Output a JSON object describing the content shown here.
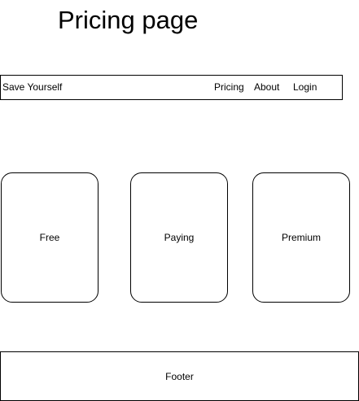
{
  "page": {
    "title": "Pricing page"
  },
  "navbar": {
    "brand": "Save Yourself",
    "links": [
      {
        "label": "Pricing"
      },
      {
        "label": "About"
      },
      {
        "label": "Login"
      }
    ]
  },
  "plans": [
    {
      "label": "Free"
    },
    {
      "label": "Paying"
    },
    {
      "label": "Premium"
    }
  ],
  "footer": {
    "label": "Footer"
  }
}
